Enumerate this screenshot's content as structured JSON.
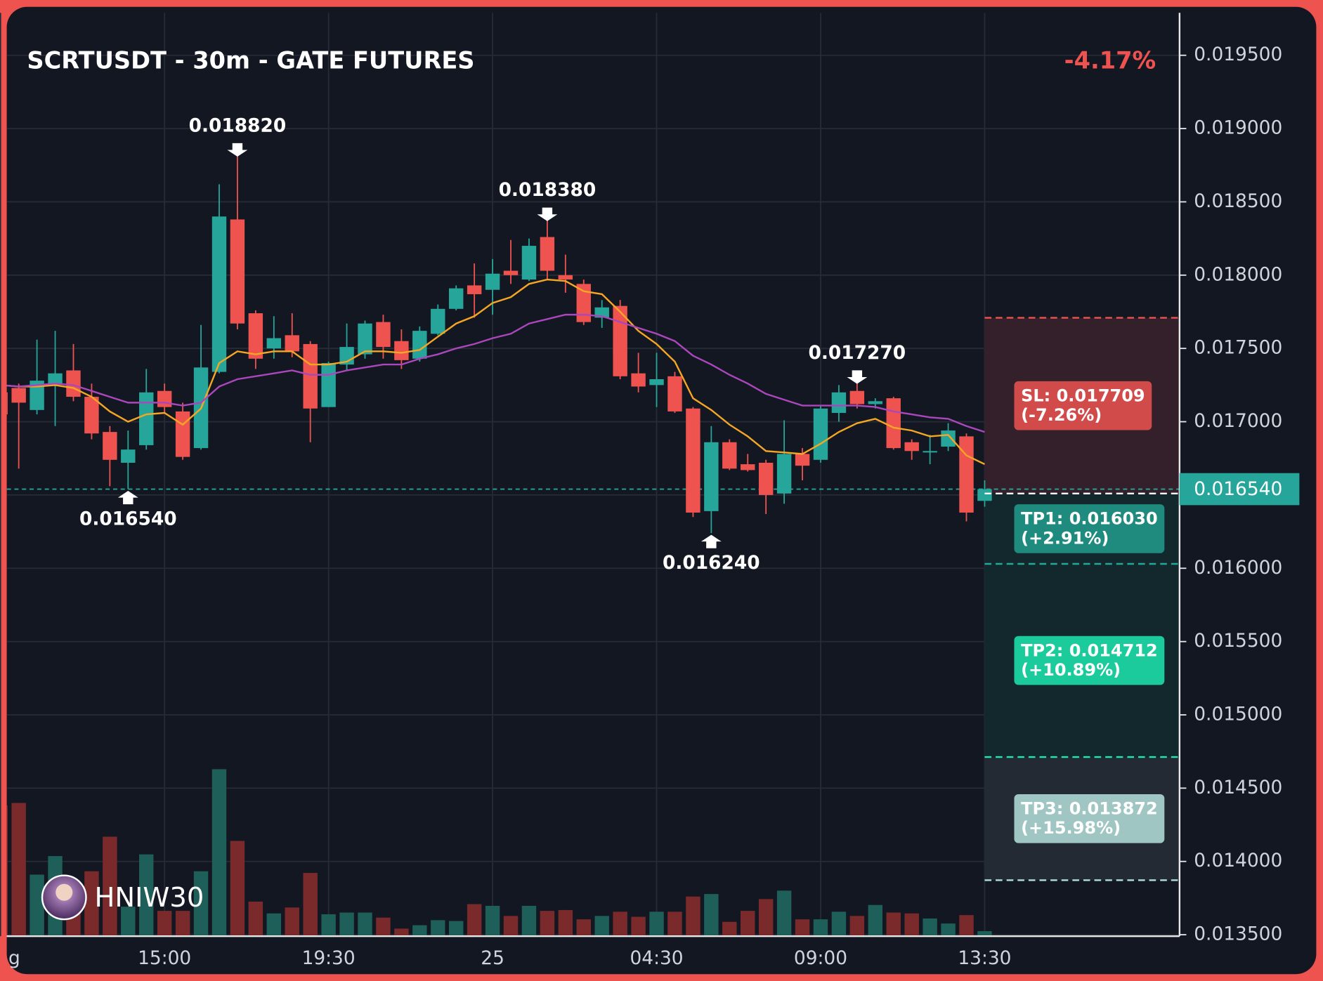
{
  "chart_data": {
    "type": "candlestick",
    "title": "SCRTUSDT - 30m - GATE FUTURES",
    "change": "-4.17%",
    "watermark": "HNIW30",
    "categories": [
      "g",
      null,
      null,
      null,
      null,
      null,
      null,
      null,
      null,
      "15:00",
      null,
      null,
      null,
      null,
      null,
      null,
      null,
      null,
      "19:30",
      null,
      null,
      null,
      null,
      null,
      null,
      null,
      null,
      "25",
      null,
      null,
      null,
      null,
      null,
      null,
      null,
      null,
      "04:30",
      null,
      null,
      null,
      null,
      null,
      null,
      null,
      null,
      "09:00",
      null,
      null,
      null,
      null,
      null,
      null,
      null,
      null,
      "13:30"
    ],
    "open": [
      0.0172,
      0.01723,
      0.01708,
      0.01726,
      0.01735,
      0.01717,
      0.01693,
      0.01672,
      0.01684,
      0.01721,
      0.01707,
      0.01682,
      0.01734,
      0.01838,
      0.01774,
      0.0175,
      0.01759,
      0.01753,
      0.0171,
      0.01739,
      0.01746,
      0.01768,
      0.01755,
      0.01743,
      0.0176,
      0.01777,
      0.01793,
      0.0179,
      0.01803,
      0.01797,
      0.01826,
      0.018,
      0.01794,
      0.01771,
      0.01779,
      0.01733,
      0.01725,
      0.01731,
      0.01709,
      0.01639,
      0.01686,
      0.01671,
      0.01672,
      0.01651,
      0.01678,
      0.01674,
      0.01706,
      0.01721,
      0.01712,
      0.01716,
      0.01686,
      0.01679,
      0.01683,
      0.0169,
      0.01646
    ],
    "high": [
      0.01725,
      0.01726,
      0.01756,
      0.01762,
      0.01753,
      0.01726,
      0.01697,
      0.01694,
      0.01736,
      0.01726,
      0.01713,
      0.01766,
      0.01862,
      0.01882,
      0.01776,
      0.01772,
      0.01774,
      0.01755,
      0.01741,
      0.01767,
      0.01769,
      0.01773,
      0.01763,
      0.01765,
      0.0178,
      0.01793,
      0.01808,
      0.01811,
      0.01824,
      0.01825,
      0.01838,
      0.01814,
      0.01797,
      0.01783,
      0.01783,
      0.01747,
      0.01747,
      0.01734,
      0.0171,
      0.01697,
      0.01688,
      0.01678,
      0.01674,
      0.01701,
      0.01682,
      0.01711,
      0.01725,
      0.01727,
      0.01716,
      0.01717,
      0.01688,
      0.01691,
      0.01699,
      0.01692,
      0.0166
    ],
    "low": [
      0.0169,
      0.01668,
      0.01705,
      0.01697,
      0.01714,
      0.01688,
      0.01656,
      0.01654,
      0.01681,
      0.01706,
      0.01674,
      0.01681,
      0.01733,
      0.01763,
      0.01736,
      0.01743,
      0.01744,
      0.01686,
      0.0171,
      0.01735,
      0.01743,
      0.01743,
      0.01736,
      0.01741,
      0.01759,
      0.01776,
      0.01771,
      0.01773,
      0.01794,
      0.01796,
      0.01797,
      0.01788,
      0.01766,
      0.01764,
      0.01729,
      0.0172,
      0.0171,
      0.01706,
      0.01635,
      0.01624,
      0.01667,
      0.01666,
      0.01637,
      0.01644,
      0.0166,
      0.01672,
      0.017,
      0.01709,
      0.01709,
      0.01681,
      0.01674,
      0.01671,
      0.0168,
      0.01632,
      0.01642
    ],
    "close": [
      0.01705,
      0.01713,
      0.01728,
      0.01733,
      0.01717,
      0.01692,
      0.01674,
      0.01681,
      0.0172,
      0.0171,
      0.01676,
      0.01737,
      0.0184,
      0.01767,
      0.01743,
      0.01757,
      0.01748,
      0.01709,
      0.0174,
      0.01751,
      0.01767,
      0.01751,
      0.01742,
      0.01762,
      0.01777,
      0.01791,
      0.01787,
      0.01801,
      0.018,
      0.0182,
      0.01803,
      0.01797,
      0.01768,
      0.01778,
      0.01731,
      0.01724,
      0.01729,
      0.01707,
      0.01638,
      0.01686,
      0.01668,
      0.01667,
      0.0165,
      0.01678,
      0.0167,
      0.01709,
      0.0172,
      0.01712,
      0.01714,
      0.01682,
      0.0168,
      0.0168,
      0.01694,
      0.01638,
      0.01654
    ],
    "volume": [
      155,
      158,
      73,
      95,
      52,
      77,
      118,
      35,
      97,
      30,
      30,
      77,
      198,
      113,
      41,
      27,
      34,
      75,
      26,
      28,
      28,
      22,
      9,
      13,
      19,
      18,
      38,
      36,
      24,
      36,
      30,
      31,
      20,
      24,
      29,
      23,
      29,
      29,
      47,
      50,
      17,
      30,
      44,
      54,
      20,
      20,
      29,
      24,
      37,
      28,
      27,
      21,
      15,
      25,
      6
    ],
    "colors": {
      "up": "#26a69a",
      "down": "#ef5350",
      "volume_up": "#1e5f59",
      "volume_down": "#7b2a2c"
    },
    "series": [
      {
        "color": "#f5a623",
        "values": [
          0.01725,
          0.01724,
          0.01724,
          0.01725,
          0.01723,
          0.01717,
          0.01707,
          0.017,
          0.01705,
          0.01706,
          0.01698,
          0.01709,
          0.0174,
          0.01748,
          0.01746,
          0.01748,
          0.01748,
          0.01739,
          0.01739,
          0.01741,
          0.01748,
          0.01748,
          0.01747,
          0.01749,
          0.01758,
          0.01767,
          0.01772,
          0.01781,
          0.01785,
          0.01794,
          0.01797,
          0.01796,
          0.01789,
          0.01787,
          0.01775,
          0.01762,
          0.01753,
          0.01741,
          0.01716,
          0.01708,
          0.01698,
          0.0169,
          0.0168,
          0.01679,
          0.01678,
          0.01685,
          0.01693,
          0.01699,
          0.01702,
          0.01696,
          0.01694,
          0.0169,
          0.01691,
          0.01677,
          0.01671
        ]
      },
      {
        "color": "#ab47bc",
        "values": [
          0.01725,
          0.01724,
          0.01725,
          0.01726,
          0.01725,
          0.01721,
          0.01717,
          0.01713,
          0.01713,
          0.01713,
          0.01711,
          0.01713,
          0.01724,
          0.01729,
          0.01731,
          0.01733,
          0.01735,
          0.01732,
          0.01732,
          0.01735,
          0.01737,
          0.01739,
          0.01739,
          0.01743,
          0.01746,
          0.0175,
          0.01753,
          0.01757,
          0.0176,
          0.01767,
          0.0177,
          0.01773,
          0.01773,
          0.01772,
          0.01768,
          0.01764,
          0.0176,
          0.01755,
          0.01745,
          0.01739,
          0.01732,
          0.01726,
          0.01719,
          0.01715,
          0.01711,
          0.01711,
          0.01711,
          0.01711,
          0.0171,
          0.01707,
          0.01705,
          0.01703,
          0.01702,
          0.01697,
          0.01693
        ]
      }
    ],
    "ylim": [
      0.01349,
      0.01979
    ],
    "yticks": [
      {
        "value": 0.0135,
        "label": "0.013500"
      },
      {
        "value": 0.014,
        "label": "0.014000"
      },
      {
        "value": 0.0145,
        "label": "0.014500"
      },
      {
        "value": 0.015,
        "label": "0.015000"
      },
      {
        "value": 0.0155,
        "label": "0.015500"
      },
      {
        "value": 0.016,
        "label": "0.016000"
      },
      {
        "value": 0.0165,
        "label": "0.016500"
      },
      {
        "value": 0.017,
        "label": "0.017000"
      },
      {
        "value": 0.0175,
        "label": "0.017500"
      },
      {
        "value": 0.018,
        "label": "0.018000"
      },
      {
        "value": 0.0185,
        "label": "0.018500"
      },
      {
        "value": 0.019,
        "label": "0.019000"
      },
      {
        "value": 0.0195,
        "label": "0.019500"
      }
    ],
    "grid": true,
    "last": {
      "value": 0.01654,
      "label": "0.016540"
    },
    "entry": 0.01651,
    "levels": [
      {
        "value": 0.017709,
        "label": "SL: 0.017709",
        "pct": "(-7.26%)",
        "color": "#ef5350",
        "box": "#d24b4b",
        "zone": "#33202a"
      },
      {
        "value": 0.01603,
        "label": "TP1: 0.016030",
        "pct": "(+2.91%)",
        "color": "#26a69a",
        "box": "#1f8a7e",
        "zone": "#12282d"
      },
      {
        "value": 0.014712,
        "label": "TP2: 0.014712",
        "pct": "(+10.89%)",
        "color": "#1de9b6",
        "box": "#1ccb9b",
        "zone": "#12282d"
      },
      {
        "value": 0.013872,
        "label": "TP3: 0.013872",
        "pct": "(+15.98%)",
        "color": "#b2dfdb",
        "box": "#9fc6c2",
        "zone": "#232a33"
      }
    ],
    "high_labels": [
      {
        "value": 0.01882,
        "label": "0.018820"
      },
      {
        "value": 0.01838,
        "label": "0.018380"
      },
      {
        "value": 0.01727,
        "label": "0.017270"
      }
    ],
    "low_labels": [
      {
        "value": 0.01654,
        "label": "0.016540"
      },
      {
        "value": 0.01624,
        "label": "0.016240"
      }
    ]
  }
}
